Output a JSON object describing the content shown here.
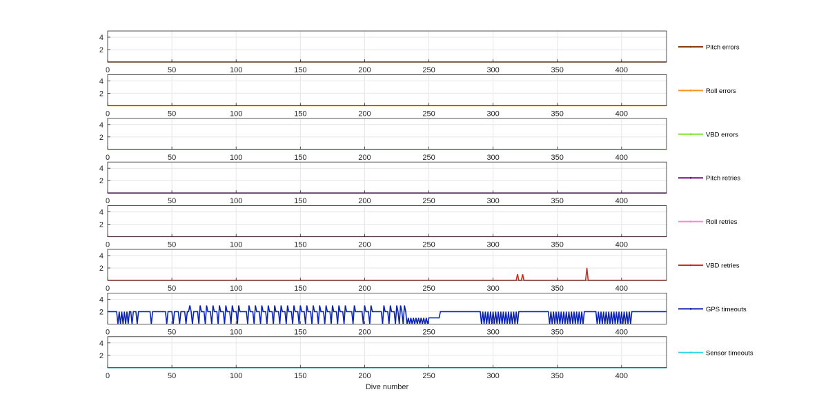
{
  "chart_data": {
    "type": "line",
    "xlabel": "Dive number",
    "xlim": [
      0,
      435
    ],
    "ylim": [
      0,
      5
    ],
    "x_ticks": [
      0,
      50,
      100,
      150,
      200,
      250,
      300,
      350,
      400
    ],
    "y_ticks": [
      2,
      4
    ],
    "grid": true,
    "legend_position": "right",
    "panels": [
      {
        "name": "Pitch errors",
        "color": "#8B3A0E",
        "points": [
          [
            0,
            0
          ],
          [
            435,
            0
          ]
        ]
      },
      {
        "name": "Roll errors",
        "color": "#F7931E",
        "points": [
          [
            0,
            0
          ],
          [
            435,
            0
          ]
        ]
      },
      {
        "name": "VBD errors",
        "color": "#7FE32A",
        "points": [
          [
            0,
            0
          ],
          [
            435,
            0
          ]
        ]
      },
      {
        "name": "Pitch retries",
        "color": "#6A0F7A",
        "points": [
          [
            0,
            0
          ],
          [
            435,
            0
          ]
        ]
      },
      {
        "name": "Roll retries",
        "color": "#F08FC8",
        "points": [
          [
            0,
            0
          ],
          [
            435,
            0
          ]
        ]
      },
      {
        "name": "VBD retries",
        "color": "#D42A1C",
        "points": [
          [
            0,
            0
          ],
          [
            318,
            0
          ],
          [
            319,
            1
          ],
          [
            320,
            0
          ],
          [
            322,
            0
          ],
          [
            323,
            1
          ],
          [
            324,
            0
          ],
          [
            372,
            0
          ],
          [
            373,
            2
          ],
          [
            374,
            0
          ],
          [
            435,
            0
          ]
        ]
      },
      {
        "name": "GPS timeouts",
        "color": "#0A22B8",
        "points": [
          [
            0,
            2
          ],
          [
            7,
            2
          ],
          [
            8,
            0
          ],
          [
            9,
            2
          ],
          [
            10,
            0
          ],
          [
            11,
            2
          ],
          [
            12,
            0
          ],
          [
            13,
            2
          ],
          [
            14,
            0
          ],
          [
            15,
            2
          ],
          [
            16,
            0
          ],
          [
            17,
            2
          ],
          [
            18,
            2
          ],
          [
            19,
            0
          ],
          [
            20,
            2
          ],
          [
            21,
            2
          ],
          [
            22,
            2
          ],
          [
            23,
            0
          ],
          [
            24,
            2
          ],
          [
            25,
            2
          ],
          [
            33,
            2
          ],
          [
            34,
            0
          ],
          [
            35,
            2
          ],
          [
            36,
            2
          ],
          [
            45,
            2
          ],
          [
            46,
            0
          ],
          [
            47,
            2
          ],
          [
            48,
            2
          ],
          [
            50,
            2
          ],
          [
            51,
            0
          ],
          [
            52,
            2
          ],
          [
            53,
            2
          ],
          [
            55,
            2
          ],
          [
            56,
            0
          ],
          [
            57,
            2
          ],
          [
            58,
            2
          ],
          [
            60,
            2
          ],
          [
            61,
            0
          ],
          [
            62,
            2
          ],
          [
            63,
            2
          ],
          [
            64,
            3
          ],
          [
            65,
            2
          ],
          [
            66,
            0
          ],
          [
            67,
            2
          ],
          [
            68,
            2
          ],
          [
            70,
            2
          ],
          [
            71,
            0
          ],
          [
            72,
            3
          ],
          [
            73,
            2
          ],
          [
            75,
            2
          ],
          [
            76,
            0
          ],
          [
            77,
            3
          ],
          [
            78,
            2
          ],
          [
            80,
            2
          ],
          [
            81,
            0
          ],
          [
            82,
            3
          ],
          [
            83,
            2
          ],
          [
            85,
            2
          ],
          [
            86,
            0
          ],
          [
            87,
            3
          ],
          [
            88,
            2
          ],
          [
            90,
            2
          ],
          [
            91,
            0
          ],
          [
            92,
            3
          ],
          [
            93,
            2
          ],
          [
            95,
            2
          ],
          [
            96,
            0
          ],
          [
            97,
            3
          ],
          [
            98,
            2
          ],
          [
            100,
            2
          ],
          [
            101,
            0
          ],
          [
            102,
            3
          ],
          [
            103,
            2
          ],
          [
            108,
            2
          ],
          [
            109,
            0
          ],
          [
            110,
            3
          ],
          [
            111,
            2
          ],
          [
            113,
            2
          ],
          [
            114,
            0
          ],
          [
            115,
            3
          ],
          [
            116,
            2
          ],
          [
            118,
            2
          ],
          [
            119,
            0
          ],
          [
            120,
            3
          ],
          [
            121,
            2
          ],
          [
            123,
            2
          ],
          [
            124,
            0
          ],
          [
            125,
            3
          ],
          [
            126,
            2
          ],
          [
            128,
            2
          ],
          [
            129,
            0
          ],
          [
            130,
            3
          ],
          [
            131,
            2
          ],
          [
            133,
            2
          ],
          [
            134,
            0
          ],
          [
            135,
            3
          ],
          [
            136,
            2
          ],
          [
            138,
            2
          ],
          [
            139,
            0
          ],
          [
            140,
            3
          ],
          [
            141,
            2
          ],
          [
            143,
            2
          ],
          [
            144,
            0
          ],
          [
            145,
            3
          ],
          [
            146,
            2
          ],
          [
            148,
            2
          ],
          [
            149,
            0
          ],
          [
            150,
            3
          ],
          [
            151,
            2
          ],
          [
            153,
            2
          ],
          [
            154,
            0
          ],
          [
            155,
            3
          ],
          [
            156,
            2
          ],
          [
            158,
            2
          ],
          [
            159,
            0
          ],
          [
            160,
            3
          ],
          [
            161,
            2
          ],
          [
            163,
            2
          ],
          [
            164,
            0
          ],
          [
            165,
            3
          ],
          [
            166,
            2
          ],
          [
            168,
            2
          ],
          [
            169,
            0
          ],
          [
            170,
            3
          ],
          [
            171,
            2
          ],
          [
            173,
            2
          ],
          [
            174,
            0
          ],
          [
            175,
            3
          ],
          [
            176,
            2
          ],
          [
            178,
            2
          ],
          [
            179,
            0
          ],
          [
            180,
            3
          ],
          [
            181,
            2
          ],
          [
            183,
            2
          ],
          [
            184,
            0
          ],
          [
            185,
            3
          ],
          [
            186,
            2
          ],
          [
            190,
            2
          ],
          [
            191,
            0
          ],
          [
            192,
            3
          ],
          [
            193,
            2
          ],
          [
            198,
            2
          ],
          [
            199,
            0
          ],
          [
            200,
            3
          ],
          [
            201,
            2
          ],
          [
            203,
            2
          ],
          [
            204,
            0
          ],
          [
            205,
            3
          ],
          [
            206,
            2
          ],
          [
            213,
            2
          ],
          [
            214,
            0
          ],
          [
            215,
            3
          ],
          [
            216,
            2
          ],
          [
            218,
            2
          ],
          [
            219,
            0
          ],
          [
            220,
            3
          ],
          [
            221,
            2
          ],
          [
            223,
            2
          ],
          [
            224,
            0
          ],
          [
            225,
            3
          ],
          [
            226,
            2
          ],
          [
            227,
            0
          ],
          [
            228,
            3
          ],
          [
            229,
            2
          ],
          [
            230,
            0
          ],
          [
            231,
            3
          ],
          [
            232,
            2
          ],
          [
            233,
            0
          ],
          [
            234,
            1
          ],
          [
            235,
            0
          ],
          [
            236,
            1
          ],
          [
            237,
            0
          ],
          [
            238,
            1
          ],
          [
            239,
            0
          ],
          [
            240,
            1
          ],
          [
            241,
            0
          ],
          [
            242,
            1
          ],
          [
            243,
            0
          ],
          [
            244,
            1
          ],
          [
            245,
            0
          ],
          [
            246,
            1
          ],
          [
            247,
            0
          ],
          [
            248,
            1
          ],
          [
            249,
            0
          ],
          [
            250,
            1
          ],
          [
            258,
            1
          ],
          [
            259,
            2
          ],
          [
            290,
            2
          ],
          [
            291,
            0
          ],
          [
            292,
            2
          ],
          [
            293,
            0
          ],
          [
            294,
            2
          ],
          [
            295,
            0
          ],
          [
            296,
            2
          ],
          [
            297,
            0
          ],
          [
            298,
            2
          ],
          [
            299,
            0
          ],
          [
            300,
            2
          ],
          [
            301,
            0
          ],
          [
            302,
            2
          ],
          [
            303,
            0
          ],
          [
            304,
            2
          ],
          [
            305,
            0
          ],
          [
            306,
            2
          ],
          [
            307,
            0
          ],
          [
            308,
            2
          ],
          [
            309,
            0
          ],
          [
            310,
            2
          ],
          [
            311,
            0
          ],
          [
            312,
            2
          ],
          [
            313,
            0
          ],
          [
            314,
            2
          ],
          [
            315,
            0
          ],
          [
            316,
            2
          ],
          [
            317,
            0
          ],
          [
            318,
            2
          ],
          [
            319,
            0
          ],
          [
            320,
            2
          ],
          [
            343,
            2
          ],
          [
            344,
            0
          ],
          [
            345,
            2
          ],
          [
            346,
            0
          ],
          [
            347,
            2
          ],
          [
            348,
            0
          ],
          [
            349,
            2
          ],
          [
            350,
            0
          ],
          [
            351,
            2
          ],
          [
            352,
            0
          ],
          [
            353,
            2
          ],
          [
            354,
            0
          ],
          [
            355,
            2
          ],
          [
            356,
            0
          ],
          [
            357,
            2
          ],
          [
            358,
            0
          ],
          [
            359,
            2
          ],
          [
            360,
            0
          ],
          [
            361,
            2
          ],
          [
            362,
            0
          ],
          [
            363,
            2
          ],
          [
            364,
            0
          ],
          [
            365,
            2
          ],
          [
            366,
            0
          ],
          [
            367,
            2
          ],
          [
            368,
            0
          ],
          [
            369,
            2
          ],
          [
            370,
            0
          ],
          [
            371,
            2
          ],
          [
            380,
            2
          ],
          [
            381,
            0
          ],
          [
            382,
            2
          ],
          [
            383,
            0
          ],
          [
            384,
            2
          ],
          [
            385,
            0
          ],
          [
            386,
            2
          ],
          [
            387,
            0
          ],
          [
            388,
            2
          ],
          [
            389,
            0
          ],
          [
            390,
            2
          ],
          [
            391,
            0
          ],
          [
            392,
            2
          ],
          [
            393,
            0
          ],
          [
            394,
            2
          ],
          [
            395,
            0
          ],
          [
            396,
            2
          ],
          [
            397,
            0
          ],
          [
            398,
            2
          ],
          [
            399,
            0
          ],
          [
            400,
            2
          ],
          [
            401,
            0
          ],
          [
            402,
            2
          ],
          [
            403,
            0
          ],
          [
            404,
            2
          ],
          [
            405,
            0
          ],
          [
            406,
            2
          ],
          [
            407,
            0
          ],
          [
            408,
            2
          ],
          [
            435,
            2
          ]
        ]
      },
      {
        "name": "Sensor timeouts",
        "color": "#2FD8E6",
        "points": [
          [
            0,
            0
          ],
          [
            435,
            0
          ]
        ]
      }
    ]
  }
}
